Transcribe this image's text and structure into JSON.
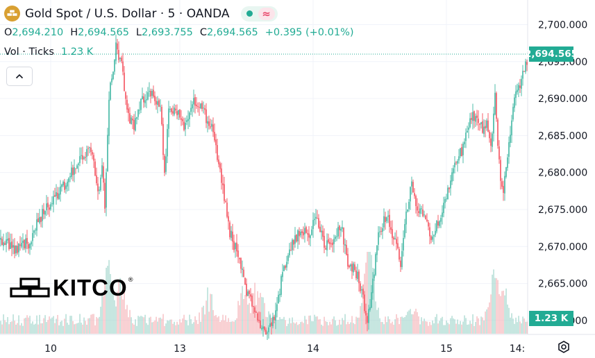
{
  "header": {
    "title": "Gold Spot / U.S. Dollar · 5 · OANDA",
    "ohlc": {
      "o_label": "O",
      "o_value": "2,694.210",
      "h_label": "H",
      "h_value": "2,694.565",
      "l_label": "L",
      "l_value": "2,693.755",
      "c_label": "C",
      "c_value": "2,694.565",
      "change": "+0.395 (+0.01%)"
    },
    "volume_label": "Vol · Ticks",
    "volume_value": "1.23 K",
    "status_icon": "≈"
  },
  "price_tag": "2,694.565",
  "volume_tag": "1.23 K",
  "watermark": "KITCO",
  "watermark_mark": "®",
  "colors": {
    "up": "#22ab94",
    "down": "#f23645",
    "up_volume": "#a8d8cf",
    "down_volume": "#f5b8bc",
    "grid": "#f0f3fa",
    "axis_text": "#131722",
    "logo": "#d9a032"
  },
  "icons": [
    "gold-coin-icon",
    "market-open-dot-icon",
    "data-delay-icon",
    "chevron-up-icon",
    "settings-icon",
    "kitco-logo-icon"
  ],
  "chart_data": {
    "type": "candlestick",
    "y_axis": {
      "ticks": [
        2700,
        2695,
        2690,
        2685,
        2680,
        2675,
        2670,
        2665,
        2660
      ],
      "tick_labels": [
        "2,700.000",
        "2,695.000",
        "2,690.000",
        "2,685.000",
        "2,680.000",
        "2,675.000",
        "2,670.000",
        "2,665.000",
        "2,660.000"
      ],
      "range": [
        2658.3,
        2702.2
      ]
    },
    "x_axis": {
      "tick_labels": [
        "10",
        "13",
        "14",
        "15",
        "14:"
      ],
      "tick_bars": [
        36,
        129,
        225,
        321,
        372
      ]
    },
    "last_price": 2694.565,
    "price_line_dotted": true,
    "grid": true,
    "bar_count": 380,
    "path": [
      [
        0,
        2671.0
      ],
      [
        10,
        2669.5
      ],
      [
        20,
        2670.5
      ],
      [
        28,
        2673.8
      ],
      [
        36,
        2676.0
      ],
      [
        45,
        2678.0
      ],
      [
        55,
        2681.5
      ],
      [
        65,
        2683.0
      ],
      [
        71,
        2677.0
      ],
      [
        73,
        2681.0
      ],
      [
        75,
        2675.0
      ],
      [
        78,
        2690.0
      ],
      [
        83,
        2697.0
      ],
      [
        87,
        2695.0
      ],
      [
        91,
        2688.0
      ],
      [
        96,
        2686.0
      ],
      [
        102,
        2690.0
      ],
      [
        108,
        2690.5
      ],
      [
        115,
        2689.0
      ],
      [
        118,
        2680.0
      ],
      [
        121,
        2688.0
      ],
      [
        128,
        2688.5
      ],
      [
        133,
        2686.0
      ],
      [
        138,
        2690.0
      ],
      [
        145,
        2688.5
      ],
      [
        152,
        2686.0
      ],
      [
        157,
        2681.0
      ],
      [
        165,
        2672.0
      ],
      [
        172,
        2668.0
      ],
      [
        177,
        2664.0
      ],
      [
        183,
        2661.0
      ],
      [
        190,
        2658.5
      ],
      [
        197,
        2660.0
      ],
      [
        203,
        2666.5
      ],
      [
        210,
        2670.5
      ],
      [
        216,
        2672.0
      ],
      [
        221,
        2671.5
      ],
      [
        228,
        2674.0
      ],
      [
        233,
        2670.0
      ],
      [
        240,
        2670.5
      ],
      [
        245,
        2673.0
      ],
      [
        250,
        2668.0
      ],
      [
        256,
        2666.5
      ],
      [
        260,
        2664.0
      ],
      [
        264,
        2659.5
      ],
      [
        268,
        2665.0
      ],
      [
        272,
        2672.0
      ],
      [
        278,
        2674.0
      ],
      [
        283,
        2671.0
      ],
      [
        288,
        2668.0
      ],
      [
        292,
        2675.0
      ],
      [
        296,
        2678.0
      ],
      [
        300,
        2675.0
      ],
      [
        305,
        2674.5
      ],
      [
        310,
        2671.5
      ],
      [
        314,
        2673.0
      ],
      [
        320,
        2676.0
      ],
      [
        324,
        2679.0
      ],
      [
        328,
        2681.5
      ],
      [
        332,
        2683.0
      ],
      [
        336,
        2686.0
      ],
      [
        340,
        2687.5
      ],
      [
        344,
        2687.0
      ],
      [
        347,
        2686.0
      ],
      [
        350,
        2687.0
      ],
      [
        353,
        2684.0
      ],
      [
        356,
        2690.0
      ],
      [
        358,
        2684.0
      ],
      [
        360,
        2679.0
      ],
      [
        362,
        2678.0
      ],
      [
        364,
        2681.0
      ],
      [
        367,
        2685.0
      ],
      [
        370,
        2690.0
      ],
      [
        374,
        2692.0
      ],
      [
        377,
        2694.2
      ],
      [
        379,
        2694.565
      ]
    ],
    "volume": {
      "max_k": 6.0,
      "surges": [
        [
          77,
          5.5
        ],
        [
          87,
          3.4
        ],
        [
          150,
          2.4
        ],
        [
          175,
          2.8
        ],
        [
          186,
          3.8
        ],
        [
          264,
          3.4
        ],
        [
          266,
          4.6
        ],
        [
          296,
          1.4
        ],
        [
          355,
          4.8
        ],
        [
          362,
          3.2
        ]
      ]
    }
  }
}
